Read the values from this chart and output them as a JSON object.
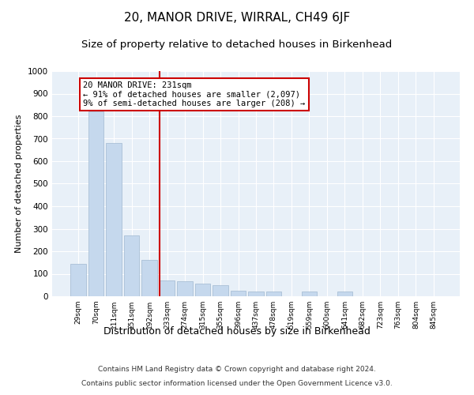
{
  "title": "20, MANOR DRIVE, WIRRAL, CH49 6JF",
  "subtitle": "Size of property relative to detached houses in Birkenhead",
  "xlabel": "Distribution of detached houses by size in Birkenhead",
  "ylabel": "Number of detached properties",
  "categories": [
    "29sqm",
    "70sqm",
    "111sqm",
    "151sqm",
    "192sqm",
    "233sqm",
    "274sqm",
    "315sqm",
    "355sqm",
    "396sqm",
    "437sqm",
    "478sqm",
    "519sqm",
    "559sqm",
    "600sqm",
    "641sqm",
    "682sqm",
    "723sqm",
    "763sqm",
    "804sqm",
    "845sqm"
  ],
  "values": [
    145,
    820,
    680,
    270,
    160,
    70,
    65,
    55,
    50,
    25,
    20,
    20,
    0,
    20,
    0,
    20,
    0,
    0,
    0,
    0,
    0
  ],
  "bar_color": "#c5d8ed",
  "bar_edge_color": "#a0b8d0",
  "vline_x_index": 5,
  "vline_color": "#cc0000",
  "annotation_line1": "20 MANOR DRIVE: 231sqm",
  "annotation_line2": "← 91% of detached houses are smaller (2,097)",
  "annotation_line3": "9% of semi-detached houses are larger (208) →",
  "annotation_box_color": "#cc0000",
  "background_color": "#e8f0f8",
  "ylim": [
    0,
    1000
  ],
  "yticks": [
    0,
    100,
    200,
    300,
    400,
    500,
    600,
    700,
    800,
    900,
    1000
  ],
  "footer1": "Contains HM Land Registry data © Crown copyright and database right 2024.",
  "footer2": "Contains public sector information licensed under the Open Government Licence v3.0.",
  "title_fontsize": 11,
  "subtitle_fontsize": 9.5,
  "xlabel_fontsize": 9,
  "ylabel_fontsize": 8,
  "annotation_fontsize": 7.5
}
